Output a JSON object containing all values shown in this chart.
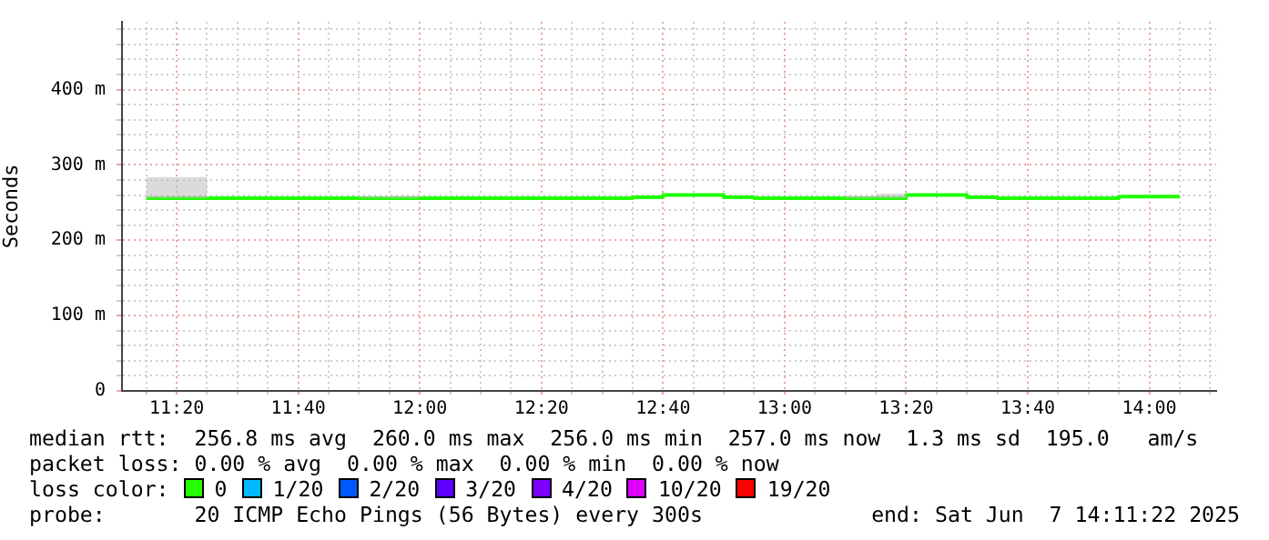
{
  "chart_data": {
    "type": "step",
    "ylabel": "Seconds",
    "x": [
      "2025-06-07T11:15",
      "2025-06-07T11:20",
      "2025-06-07T11:25",
      "2025-06-07T11:30",
      "2025-06-07T11:35",
      "2025-06-07T11:40",
      "2025-06-07T11:45",
      "2025-06-07T11:50",
      "2025-06-07T11:55",
      "2025-06-07T12:00",
      "2025-06-07T12:05",
      "2025-06-07T12:10",
      "2025-06-07T12:15",
      "2025-06-07T12:20",
      "2025-06-07T12:25",
      "2025-06-07T12:30",
      "2025-06-07T12:35",
      "2025-06-07T12:40",
      "2025-06-07T12:45",
      "2025-06-07T12:50",
      "2025-06-07T12:55",
      "2025-06-07T13:00",
      "2025-06-07T13:05",
      "2025-06-07T13:10",
      "2025-06-07T13:15",
      "2025-06-07T13:20",
      "2025-06-07T13:25",
      "2025-06-07T13:30",
      "2025-06-07T13:35",
      "2025-06-07T13:40",
      "2025-06-07T13:45",
      "2025-06-07T13:50",
      "2025-06-07T13:55",
      "2025-06-07T14:00",
      "2025-06-07T14:05"
    ],
    "series": [
      {
        "color": "#20ff00",
        "values": [
          256,
          256,
          256,
          256,
          256,
          256,
          256,
          256,
          256,
          256,
          256,
          256,
          256,
          256,
          256,
          256,
          256,
          257,
          260,
          260,
          257,
          256,
          256,
          256,
          256,
          256,
          260,
          260,
          257,
          256,
          256,
          256,
          256,
          258,
          258
        ],
        "lower": [
          256,
          256,
          256,
          256,
          256,
          256,
          256,
          256,
          256,
          256,
          256,
          256,
          256,
          256,
          256,
          256,
          256,
          257,
          260,
          260,
          257,
          256,
          256,
          256,
          256,
          256,
          260,
          260,
          257,
          256,
          256,
          256,
          256,
          258,
          258
        ],
        "upper": [
          279,
          284,
          284,
          256,
          256,
          256,
          256,
          256,
          258,
          259,
          256,
          256,
          256,
          256,
          256,
          256,
          256,
          257,
          260,
          260,
          257,
          256,
          256,
          256,
          259,
          262,
          260,
          260,
          257,
          256,
          256,
          256,
          256,
          258,
          258
        ]
      }
    ],
    "xlim": [
      "2025-06-07T11:11",
      "2025-06-07T14:11"
    ],
    "xticks": [
      {
        "value": "2025-06-07T11:15",
        "label": null
      },
      {
        "value": "2025-06-07T11:20",
        "label": "11:20"
      },
      {
        "value": "2025-06-07T11:25",
        "label": null
      },
      {
        "value": "2025-06-07T11:30",
        "label": null
      },
      {
        "value": "2025-06-07T11:35",
        "label": null
      },
      {
        "value": "2025-06-07T11:40",
        "label": "11:40"
      },
      {
        "value": "2025-06-07T11:45",
        "label": null
      },
      {
        "value": "2025-06-07T11:50",
        "label": null
      },
      {
        "value": "2025-06-07T11:55",
        "label": null
      },
      {
        "value": "2025-06-07T12:00",
        "label": "12:00"
      },
      {
        "value": "2025-06-07T12:05",
        "label": null
      },
      {
        "value": "2025-06-07T12:10",
        "label": null
      },
      {
        "value": "2025-06-07T12:15",
        "label": null
      },
      {
        "value": "2025-06-07T12:20",
        "label": "12:20"
      },
      {
        "value": "2025-06-07T12:25",
        "label": null
      },
      {
        "value": "2025-06-07T12:30",
        "label": null
      },
      {
        "value": "2025-06-07T12:35",
        "label": null
      },
      {
        "value": "2025-06-07T12:40",
        "label": "12:40"
      },
      {
        "value": "2025-06-07T12:45",
        "label": null
      },
      {
        "value": "2025-06-07T12:50",
        "label": null
      },
      {
        "value": "2025-06-07T12:55",
        "label": null
      },
      {
        "value": "2025-06-07T13:00",
        "label": "13:00"
      },
      {
        "value": "2025-06-07T13:05",
        "label": null
      },
      {
        "value": "2025-06-07T13:10",
        "label": null
      },
      {
        "value": "2025-06-07T13:15",
        "label": null
      },
      {
        "value": "2025-06-07T13:20",
        "label": "13:20"
      },
      {
        "value": "2025-06-07T13:25",
        "label": null
      },
      {
        "value": "2025-06-07T13:30",
        "label": null
      },
      {
        "value": "2025-06-07T13:35",
        "label": null
      },
      {
        "value": "2025-06-07T13:40",
        "label": "13:40"
      },
      {
        "value": "2025-06-07T13:45",
        "label": null
      },
      {
        "value": "2025-06-07T13:50",
        "label": null
      },
      {
        "value": "2025-06-07T13:55",
        "label": null
      },
      {
        "value": "2025-06-07T14:00",
        "label": "14:00"
      },
      {
        "value": "2025-06-07T14:05",
        "label": null
      },
      {
        "value": "2025-06-07T14:10",
        "label": null
      }
    ],
    "ylim": [
      0,
      490
    ],
    "yticks": [
      0,
      {
        "value": 20,
        "label": null
      },
      {
        "value": 40,
        "label": null
      },
      {
        "value": 60,
        "label": null
      },
      {
        "value": 80,
        "label": null
      },
      {
        "value": 100,
        "label": "100 m"
      },
      {
        "value": 120,
        "label": null
      },
      {
        "value": 140,
        "label": null
      },
      {
        "value": 160,
        "label": null
      },
      {
        "value": 180,
        "label": null
      },
      {
        "value": 200,
        "label": "200 m"
      },
      {
        "value": 220,
        "label": null
      },
      {
        "value": 240,
        "label": null
      },
      {
        "value": 260,
        "label": null
      },
      {
        "value": 280,
        "label": null
      },
      {
        "value": 300,
        "label": "300 m"
      },
      {
        "value": 320,
        "label": null
      },
      {
        "value": 340,
        "label": null
      },
      {
        "value": 360,
        "label": null
      },
      {
        "value": 380,
        "label": null
      },
      {
        "value": 400,
        "label": "400 m"
      },
      {
        "value": 420,
        "label": null
      },
      {
        "value": 440,
        "label": null
      },
      {
        "value": 460,
        "label": null
      },
      {
        "value": 480,
        "label": null
      }
    ],
    "grid": true,
    "annotations": [
      "median rtt:  256.8 ms avg  260.0 ms max  256.0 ms min  257.0 ms now  1.3 ms sd  195.0   am/s",
      "packet loss: 0.00 % avg  0.00 % max  0.00 % min  0.00 % now",
      "loss color:",
      "0",
      "1/20",
      "2/20",
      "3/20",
      "4/20",
      "10/20",
      "19/20",
      "probe:       20 ICMP Echo Pings (56 Bytes) every 300s",
      "end: Sat Jun  7 14:11:22 2025"
    ]
  }
}
